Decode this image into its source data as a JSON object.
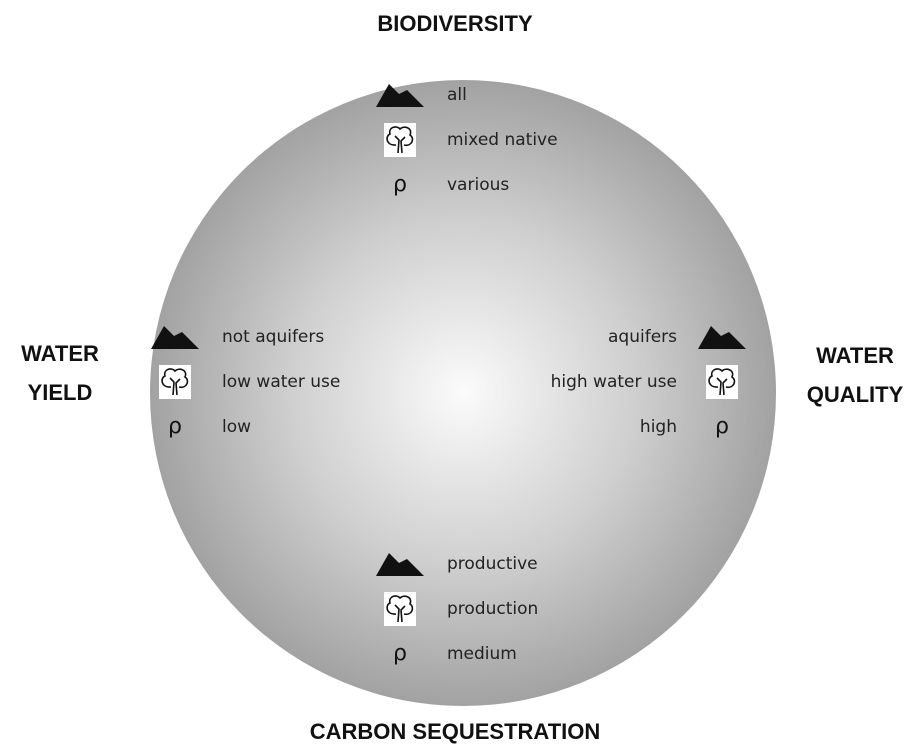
{
  "sections": [
    {
      "title_lines": [
        "BIODIVERSITY"
      ],
      "landscape": "all",
      "vegetation": "mixed native",
      "density_symbol": "ρ",
      "density": "various"
    },
    {
      "title_lines": [
        "WATER",
        "YIELD"
      ],
      "landscape": "not aquifers",
      "vegetation": "low water use",
      "density_symbol": "ρ",
      "density": "low"
    },
    {
      "title_lines": [
        "WATER",
        "QUALITY"
      ],
      "landscape": "aquifers",
      "vegetation": "high water use",
      "density_symbol": "ρ",
      "density": "high"
    },
    {
      "title_lines": [
        "CARBON SEQUESTRATION"
      ],
      "landscape": "productive",
      "vegetation": "production",
      "density_symbol": "ρ",
      "density": "medium"
    }
  ]
}
